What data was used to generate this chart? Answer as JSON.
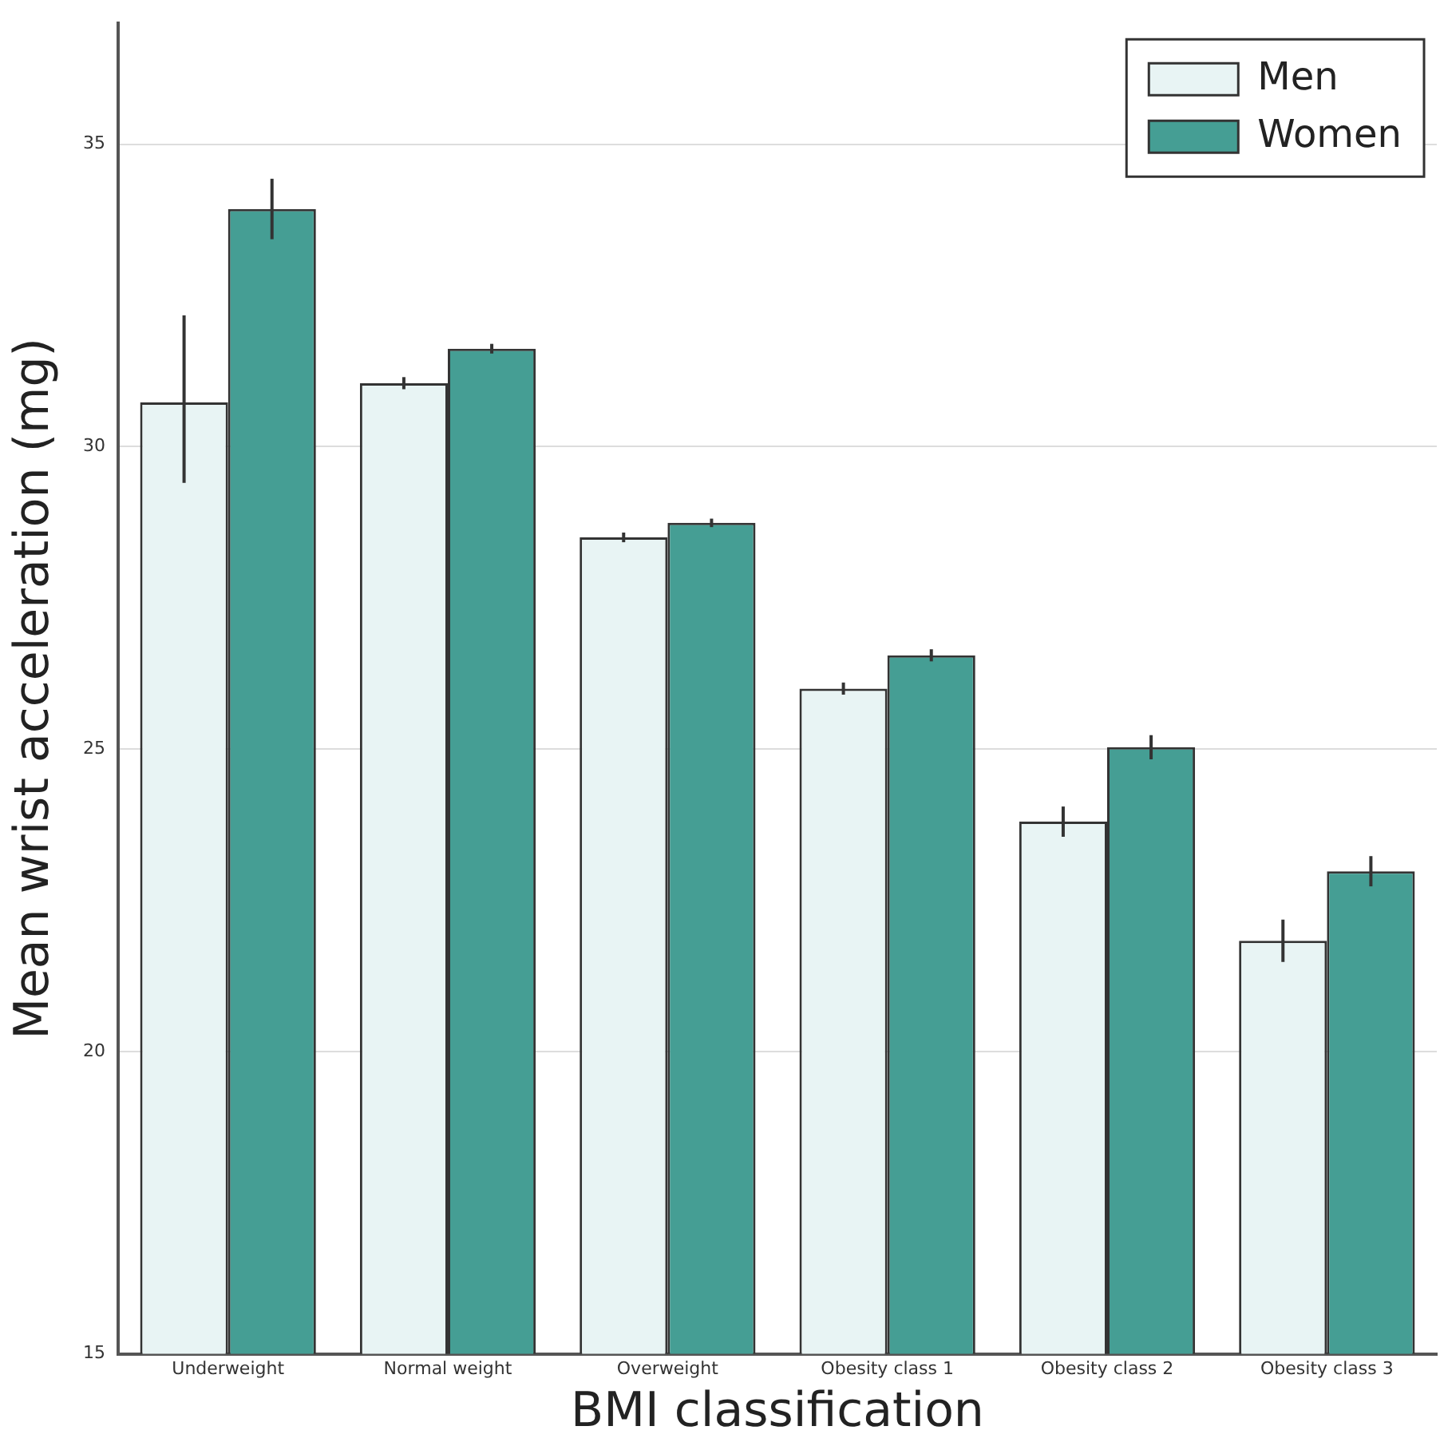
{
  "chart_data": {
    "type": "bar",
    "xlabel": "BMI classification",
    "ylabel": "Mean wrist acceleration (mg)",
    "categories": [
      "Underweight",
      "Normal weight",
      "Overweight",
      "Obesity class 1",
      "Obesity class 2",
      "Obesity class 3"
    ],
    "series": [
      {
        "name": "Men",
        "color": "#e8f4f4",
        "values": [
          30.73,
          31.05,
          28.5,
          26.0,
          23.8,
          21.83
        ],
        "errors": [
          [
            29.4,
            32.17
          ],
          0.1,
          0.08,
          0.1,
          0.25,
          0.35
        ]
      },
      {
        "name": "Women",
        "color": "#459e94",
        "values": [
          33.93,
          31.62,
          28.74,
          26.55,
          25.03,
          22.98
        ],
        "errors": [
          0.5,
          0.08,
          0.07,
          0.1,
          0.2,
          0.25
        ]
      }
    ],
    "ylim": [
      15,
      37
    ],
    "yticks": [
      15,
      20,
      25,
      30,
      35
    ],
    "grid": "y",
    "legend": "top right"
  }
}
